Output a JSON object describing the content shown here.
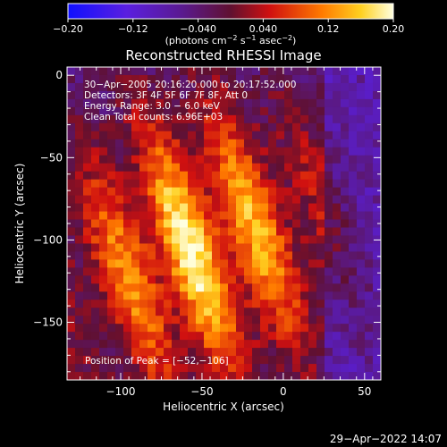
{
  "colorbar": {
    "ticks": [
      "−0.20",
      "−0.12",
      "−0.040",
      "0.040",
      "0.12",
      "0.20"
    ],
    "units": "(photons cm",
    "units_exp1": "−2",
    "units_mid": " s",
    "units_exp2": "−1",
    "units_mid2": " asec",
    "units_exp3": "−2",
    "units_end": ")",
    "range": [
      -0.2,
      0.2
    ]
  },
  "annotations": [
    "30−Apr−2005 20:16:20.000 to 20:17:52.000",
    "Detectors: 3F 4F 5F 6F 7F 8F, Att 0",
    "Energy Range: 3.0 − 6.0 keV",
    "Clean    Total counts: 6.96E+03"
  ],
  "peak_label": "Position of Peak = [−52,−106]",
  "footer_date": "29−Apr−2022 14:07",
  "chart_data": {
    "type": "heatmap",
    "title": "Reconstructed RHESSI Image",
    "xlabel": "Heliocentric X (arcsec)",
    "ylabel": "Heliocentric Y (arcsec)",
    "xlim": [
      -133,
      60
    ],
    "ylim": [
      -185,
      5
    ],
    "xticks": [
      "−100",
      "−50",
      "0",
      "50"
    ],
    "xtick_values": [
      -100,
      -50,
      0,
      50
    ],
    "yticks": [
      "0",
      "−50",
      "−100",
      "−150"
    ],
    "ytick_values": [
      0,
      -50,
      -100,
      -150
    ],
    "peak": [
      -52,
      -106
    ],
    "colormap": "hot-to-cold (blue, purple, red, orange, yellow, white)"
  }
}
